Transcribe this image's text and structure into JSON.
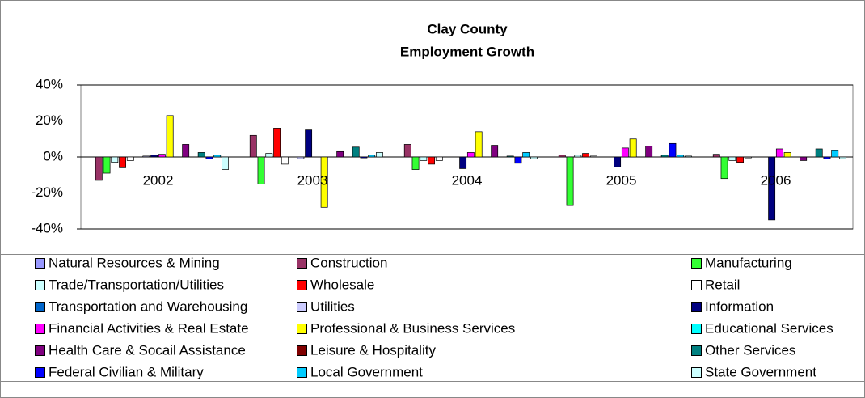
{
  "chart_data": {
    "type": "bar",
    "title": "Clay County",
    "subtitle": "Employment Growth",
    "categories": [
      "2002",
      "2003",
      "2004",
      "2005",
      "2006"
    ],
    "ylim": [
      -40,
      40
    ],
    "yticks": [
      {
        "value": -40,
        "label": "-40%"
      },
      {
        "value": -20,
        "label": "-20%"
      },
      {
        "value": 0,
        "label": "0%"
      },
      {
        "value": 20,
        "label": "20%"
      },
      {
        "value": 40,
        "label": "40%"
      }
    ],
    "grid": true,
    "legend": "bottom",
    "series": [
      {
        "name": "Natural Resources & Mining",
        "color": "#9999ff",
        "values": [
          0,
          0,
          0,
          0,
          0
        ]
      },
      {
        "name": "Construction",
        "color": "#993366",
        "values": [
          -13,
          12,
          7,
          1,
          1.5
        ]
      },
      {
        "name": "Manufacturing",
        "color": "#33ff33",
        "values": [
          -9,
          -15,
          -7,
          -27,
          -12
        ]
      },
      {
        "name": "Trade/Transportation/Utilities",
        "color": "#ccffff",
        "values": [
          -3,
          2,
          -2,
          1,
          -2
        ]
      },
      {
        "name": "Wholesale",
        "color": "#ff0000",
        "values": [
          -6,
          16,
          -4,
          2,
          -3
        ]
      },
      {
        "name": "Retail",
        "color": "#ffffff",
        "values": [
          -2,
          -4,
          -2,
          0.5,
          -0.5
        ]
      },
      {
        "name": "Transportation and Warehousing",
        "color": "#0066cc",
        "values": [
          0,
          0,
          0,
          0,
          0
        ]
      },
      {
        "name": "Utilities",
        "color": "#ccccff",
        "values": [
          0.5,
          -1,
          0,
          0,
          0
        ]
      },
      {
        "name": "Information",
        "color": "#000080",
        "values": [
          1,
          15,
          -6.5,
          -5.5,
          -35
        ]
      },
      {
        "name": "Financial Activities & Real Estate",
        "color": "#ff00ff",
        "values": [
          1.5,
          0,
          2.5,
          5,
          4.5
        ]
      },
      {
        "name": "Professional & Business Services",
        "color": "#ffff00",
        "values": [
          23,
          -28,
          14,
          10,
          2.5
        ]
      },
      {
        "name": "Educational Services",
        "color": "#00ffff",
        "values": [
          0,
          0,
          0,
          0,
          0
        ]
      },
      {
        "name": "Health Care & Socail Assistance",
        "color": "#800080",
        "values": [
          7,
          3,
          6.5,
          6,
          -2
        ]
      },
      {
        "name": "Leisure & Hospitality",
        "color": "#800000",
        "values": [
          0,
          0,
          0,
          0,
          0
        ]
      },
      {
        "name": "Other Services",
        "color": "#008080",
        "values": [
          2.5,
          5.5,
          0.5,
          1,
          4.5
        ]
      },
      {
        "name": "Federal Civilian & Military",
        "color": "#0000ff",
        "values": [
          -1,
          -0.5,
          -3.5,
          7.5,
          -1
        ]
      },
      {
        "name": "Local Government",
        "color": "#00ccff",
        "values": [
          1,
          1,
          2.5,
          1,
          3.5
        ]
      },
      {
        "name": "State Government",
        "color": "#ccffff",
        "values": [
          -7,
          2.5,
          -1,
          0.5,
          -1
        ]
      }
    ]
  }
}
